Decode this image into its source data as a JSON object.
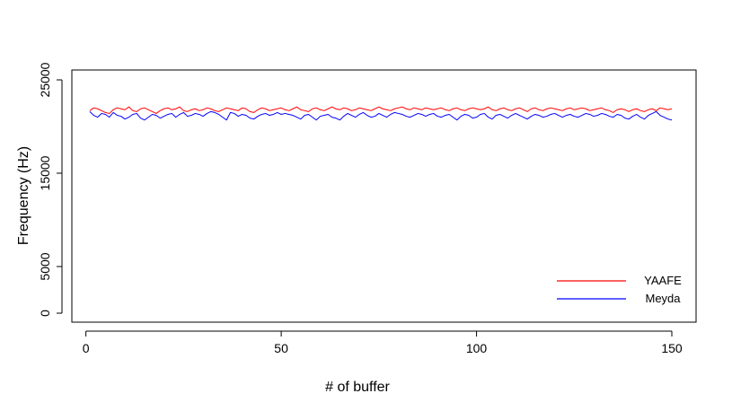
{
  "chart_data": {
    "type": "line",
    "title": "",
    "xlabel": "# of buffer",
    "ylabel": "Frequency (Hz)",
    "xlim": [
      1,
      150
    ],
    "ylim": [
      0,
      25000
    ],
    "x_ticks": [
      0,
      50,
      100,
      150
    ],
    "y_ticks": [
      0,
      5000,
      15000,
      25000
    ],
    "grid": false,
    "legend_position": "bottom-right",
    "series": [
      {
        "name": "YAAFE",
        "color": "#ff0000",
        "x_start": 1,
        "x_step": 1,
        "values": [
          21700,
          22000,
          21900,
          21700,
          21500,
          21400,
          21800,
          22000,
          21900,
          21800,
          22100,
          21700,
          21600,
          21900,
          22000,
          21800,
          21600,
          21400,
          21700,
          21900,
          22000,
          21800,
          21900,
          22100,
          21700,
          21600,
          21800,
          21900,
          21700,
          21800,
          22000,
          21900,
          21700,
          21600,
          21800,
          22000,
          21900,
          21800,
          21700,
          22000,
          21900,
          21600,
          21500,
          21800,
          22000,
          21900,
          21700,
          21800,
          21900,
          22000,
          21800,
          21700,
          21900,
          22100,
          21800,
          21700,
          21600,
          21900,
          22000,
          21800,
          21700,
          21900,
          22100,
          21900,
          21800,
          22000,
          21900,
          21700,
          21800,
          22000,
          21900,
          21800,
          21700,
          21900,
          22100,
          21900,
          21800,
          21700,
          21900,
          22000,
          22100,
          21900,
          21800,
          22000,
          21900,
          21800,
          22000,
          21900,
          21800,
          21900,
          22000,
          21800,
          21700,
          21900,
          22000,
          21800,
          21700,
          21900,
          22000,
          21900,
          21800,
          21900,
          22100,
          21800,
          21700,
          21900,
          22000,
          21800,
          21700,
          21900,
          22000,
          21800,
          21600,
          21900,
          22000,
          21800,
          21700,
          21900,
          22000,
          21900,
          21800,
          21700,
          21900,
          22000,
          21800,
          21900,
          22000,
          21900,
          21700,
          21800,
          21900,
          22000,
          21800,
          21700,
          21500,
          21800,
          21900,
          21800,
          21600,
          21800,
          21900,
          21700,
          21600,
          21800,
          21900,
          21700,
          22000,
          21900,
          21800,
          21900
        ]
      },
      {
        "name": "Meyda",
        "color": "#0000ff",
        "x_start": 1,
        "x_step": 1,
        "values": [
          21600,
          21200,
          21000,
          21400,
          21300,
          21000,
          21500,
          21200,
          21100,
          20800,
          21000,
          21300,
          21400,
          20900,
          20700,
          21000,
          21300,
          21200,
          20900,
          21100,
          21300,
          21400,
          21000,
          21300,
          21500,
          21100,
          21200,
          21400,
          21300,
          21100,
          21400,
          21600,
          21500,
          21300,
          21000,
          20700,
          21500,
          21400,
          21100,
          21300,
          21200,
          20900,
          20800,
          21100,
          21300,
          21400,
          21200,
          21300,
          21500,
          21300,
          21400,
          21300,
          21200,
          21000,
          20800,
          21200,
          21300,
          21000,
          20700,
          21100,
          21200,
          21300,
          21000,
          20900,
          20700,
          21100,
          21400,
          21200,
          21000,
          21300,
          21500,
          21200,
          21000,
          21100,
          21400,
          21200,
          21000,
          21300,
          21500,
          21400,
          21300,
          21100,
          21000,
          21200,
          21400,
          21300,
          21100,
          21300,
          21400,
          21100,
          21000,
          21200,
          21300,
          21000,
          20700,
          21100,
          21300,
          21200,
          20900,
          21000,
          21300,
          21400,
          21000,
          20800,
          21200,
          21300,
          21100,
          20900,
          21200,
          21400,
          21200,
          21000,
          20800,
          21100,
          21300,
          21200,
          21000,
          21100,
          21300,
          21400,
          21200,
          21000,
          21200,
          21300,
          21100,
          21000,
          21200,
          21400,
          21300,
          21100,
          21200,
          21400,
          21300,
          21100,
          21000,
          21300,
          21200,
          20900,
          20800,
          21100,
          21300,
          21000,
          20800,
          21200,
          21400,
          21600,
          21200,
          21000,
          20800,
          20700
        ]
      }
    ]
  }
}
